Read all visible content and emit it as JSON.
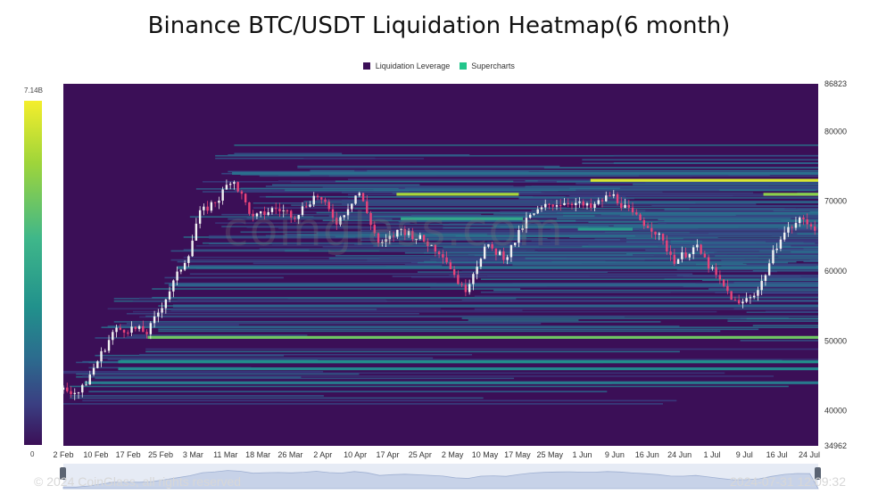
{
  "title": "Binance BTC/USDT Liquidation Heatmap(6 month)",
  "legend": [
    {
      "label": "Liquidation Leverage",
      "color": "#3b0f57"
    },
    {
      "label": "Supercharts",
      "color": "#22c58b"
    }
  ],
  "colorbar": {
    "max_label": "7.14B",
    "min_label": "0"
  },
  "watermark": "coinglass.com",
  "footer": {
    "copyright": "© 2024 CoinGlass, all rights reserved",
    "timestamp": "2024-07-31 12:09:32"
  },
  "colors": {
    "background": "#3b0f57",
    "price": "#e8447a",
    "hot": "#f4ee2c"
  },
  "chart_data": {
    "type": "heatmap",
    "title": "Binance BTC/USDT Liquidation Heatmap(6 month)",
    "x_tick_labels": [
      "2 Feb",
      "10 Feb",
      "17 Feb",
      "25 Feb",
      "3 Mar",
      "11 Mar",
      "18 Mar",
      "26 Mar",
      "2 Apr",
      "10 Apr",
      "17 Apr",
      "25 Apr",
      "2 May",
      "10 May",
      "17 May",
      "25 May",
      "1 Jun",
      "9 Jun",
      "16 Jun",
      "24 Jun",
      "1 Jul",
      "9 Jul",
      "16 Jul",
      "24 Jul"
    ],
    "y_tick_labels": [
      "86823",
      "80000",
      "70000",
      "60000",
      "50000",
      "40000",
      "34962"
    ],
    "ylim": [
      34962,
      86823
    ],
    "price_path": {
      "day": [
        0,
        4,
        8,
        12,
        16,
        20,
        25,
        30,
        32,
        37,
        40,
        45,
        50,
        55,
        60,
        65,
        70,
        75,
        80,
        85,
        90,
        95,
        100,
        105,
        110,
        115,
        120,
        125,
        130,
        135,
        140,
        145,
        150,
        155,
        160,
        165,
        170,
        175,
        179
      ],
      "price": [
        43000,
        42600,
        47000,
        51500,
        51800,
        51200,
        57000,
        63000,
        68000,
        70500,
        73500,
        67500,
        69000,
        68000,
        71000,
        67000,
        71500,
        63500,
        66000,
        64500,
        62500,
        57000,
        63500,
        62000,
        67500,
        69500,
        70000,
        69000,
        71000,
        68000,
        66000,
        61500,
        63500,
        59000,
        55000,
        57500,
        65000,
        67500,
        66000
      ],
      "y_unit": "USDT"
    },
    "liquidation_bands": [
      {
        "price": 73000,
        "start_day": 125,
        "end_day": 179,
        "intensity": 0.95
      },
      {
        "price": 71000,
        "start_day": 79,
        "end_day": 108,
        "intensity": 0.85
      },
      {
        "price": 71000,
        "start_day": 166,
        "end_day": 179,
        "intensity": 0.8
      },
      {
        "price": 67500,
        "start_day": 80,
        "end_day": 109,
        "intensity": 0.6
      },
      {
        "price": 66000,
        "start_day": 122,
        "end_day": 135,
        "intensity": 0.55
      },
      {
        "price": 50500,
        "start_day": 20,
        "end_day": 179,
        "intensity": 0.75
      },
      {
        "price": 47000,
        "start_day": 13,
        "end_day": 179,
        "intensity": 0.5
      },
      {
        "price": 46000,
        "start_day": 13,
        "end_day": 179,
        "intensity": 0.45
      },
      {
        "price": 44000,
        "start_day": 5,
        "end_day": 179,
        "intensity": 0.4
      },
      {
        "price": 74000,
        "start_day": 40,
        "end_day": 179,
        "intensity": 0.35
      },
      {
        "price": 60500,
        "start_day": 27,
        "end_day": 179,
        "intensity": 0.35
      },
      {
        "price": 58000,
        "start_day": 25,
        "end_day": 179,
        "intensity": 0.3
      },
      {
        "price": 55000,
        "start_day": 26,
        "end_day": 179,
        "intensity": 0.3
      }
    ]
  }
}
